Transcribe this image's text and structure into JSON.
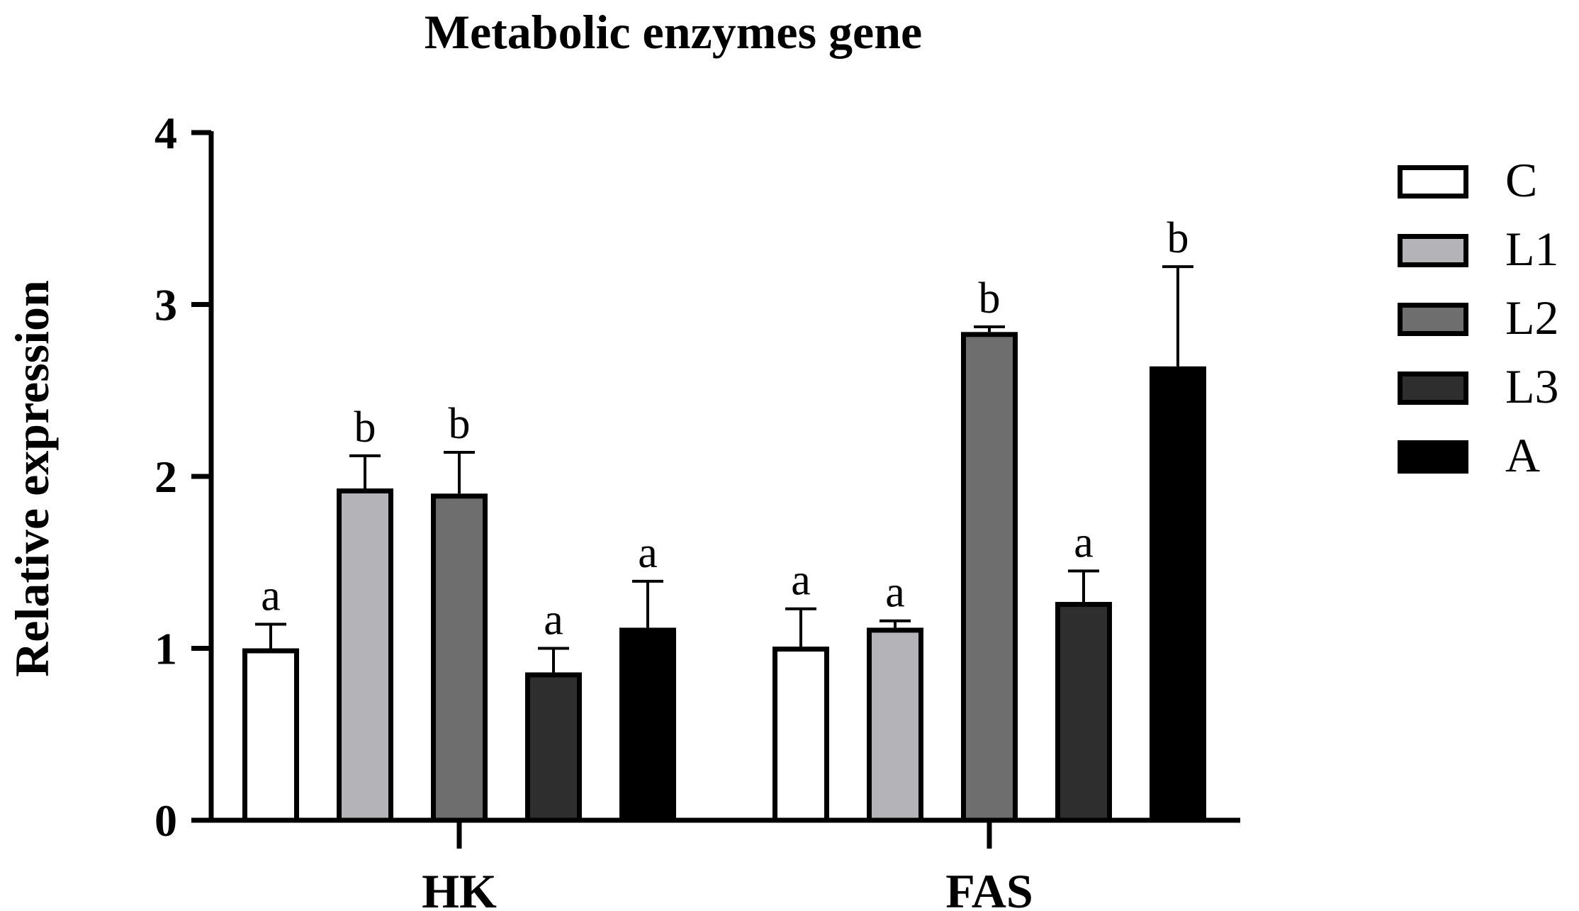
{
  "chart_data": {
    "type": "bar",
    "title": "Metabolic enzymes gene",
    "xlabel": "",
    "ylabel": "Relative expression",
    "ylim": [
      0,
      4
    ],
    "yticks": [
      "0",
      "1",
      "2",
      "3",
      "4"
    ],
    "categories": [
      "HK",
      "FAS"
    ],
    "series": [
      {
        "name": "C",
        "color": "#ffffff",
        "values": [
          1.0,
          1.01
        ],
        "errors": [
          0.14,
          0.22
        ],
        "sig": [
          "a",
          "a"
        ]
      },
      {
        "name": "L1",
        "color": "#b4b4b8",
        "values": [
          1.93,
          1.12
        ],
        "errors": [
          0.19,
          0.04
        ],
        "sig": [
          "b",
          "a"
        ]
      },
      {
        "name": "L2",
        "color": "#6e6e6e",
        "values": [
          1.9,
          2.84
        ],
        "errors": [
          0.24,
          0.03
        ],
        "sig": [
          "b",
          "b"
        ]
      },
      {
        "name": "L3",
        "color": "#2e2e2e",
        "values": [
          0.86,
          1.27
        ],
        "errors": [
          0.14,
          0.18
        ],
        "sig": [
          "a",
          "a"
        ]
      },
      {
        "name": "A",
        "color": "#000000",
        "values": [
          1.12,
          2.64
        ],
        "errors": [
          0.27,
          0.58
        ],
        "sig": [
          "a",
          "b"
        ]
      }
    ],
    "legend_position": "right",
    "grid": false
  }
}
